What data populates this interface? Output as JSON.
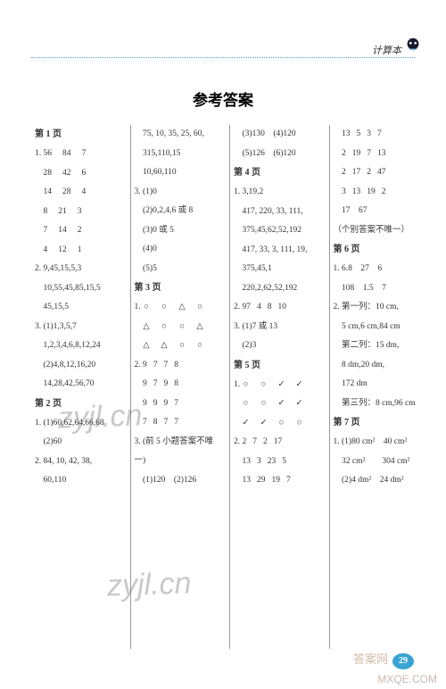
{
  "header": {
    "label": "计算本"
  },
  "title": "参考答案",
  "watermark": "zyjl.cn",
  "footer_page": "29",
  "bottom_wm1": "MXQE.COM",
  "bottom_wm2": "答案网",
  "columns": [
    [
      {
        "cls": "page-hd",
        "t": "第 1 页"
      },
      {
        "cls": "multi",
        "t": [
          "1. 56",
          "84",
          "7"
        ]
      },
      {
        "cls": "multi",
        "t": [
          "　28",
          "42",
          "6"
        ]
      },
      {
        "cls": "multi",
        "t": [
          "　14",
          "28",
          "4"
        ]
      },
      {
        "cls": "multi",
        "t": [
          "　8",
          "21",
          "3"
        ]
      },
      {
        "cls": "multi",
        "t": [
          "　7",
          "14",
          "2"
        ]
      },
      {
        "cls": "multi",
        "t": [
          "　4",
          "12",
          "1"
        ]
      },
      {
        "t": "2. 9,45,15,5,3"
      },
      {
        "t": "　10,55,45,85,15,5"
      },
      {
        "t": "　45,15,5"
      },
      {
        "t": "3. (1)1,3,5,7"
      },
      {
        "t": "　1,2,3,4,6,8,12,24"
      },
      {
        "t": "　(2)4,8,12,16,20"
      },
      {
        "t": "　14,28,42,56,70"
      },
      {
        "cls": "page-hd",
        "t": "第 2 页"
      },
      {
        "t": "1. (1)60,62,64,66,68"
      },
      {
        "t": "　(2)60"
      },
      {
        "t": "2.  84,  10,  42,  38,"
      },
      {
        "t": "　60,110"
      }
    ],
    [
      {
        "t": "　75, 10, 35, 25, 60,"
      },
      {
        "t": "　315,110,15"
      },
      {
        "t": "　10,60,110"
      },
      {
        "t": "3. (1)0"
      },
      {
        "t": "　(2)0,2,4,6 或 8"
      },
      {
        "t": "　(3)0 或 5"
      },
      {
        "t": "　(4)0"
      },
      {
        "t": "　(5)5"
      },
      {
        "cls": "page-hd",
        "t": "第 3 页"
      },
      {
        "cls": "shapes",
        "t": [
          "○",
          "○",
          "△",
          "○"
        ]
      },
      {
        "cls": "shapes",
        "t": [
          "△",
          "○",
          "○",
          "△"
        ]
      },
      {
        "cls": "shapes",
        "t": [
          "△",
          "△",
          "○",
          "○"
        ]
      },
      {
        "cls": "multi3",
        "t": [
          "2. 9",
          "7",
          "7",
          "8"
        ]
      },
      {
        "cls": "multi3",
        "t": [
          "　9",
          "7",
          "9",
          "8"
        ]
      },
      {
        "cls": "multi3",
        "t": [
          "　9",
          "9",
          "9",
          "7"
        ]
      },
      {
        "cls": "multi3",
        "t": [
          "　7",
          "8",
          "7",
          "7"
        ]
      },
      {
        "t": "3. (前 5 小题答案不唯"
      },
      {
        "t": "一)"
      },
      {
        "t": "　(1)120　(2)126"
      }
    ],
    [
      {
        "t": "　(3)130　(4)120"
      },
      {
        "t": "　(5)126　(6)120"
      },
      {
        "cls": "page-hd",
        "t": "第 4 页"
      },
      {
        "t": "1. 3,19,2"
      },
      {
        "t": "　417, 220, 33, 111,"
      },
      {
        "t": "　375,45,62,52,192"
      },
      {
        "t": "　417, 33, 3, 111, 19,"
      },
      {
        "t": "　375,45,1"
      },
      {
        "t": "　220,2,62,52,192"
      },
      {
        "cls": "multi3",
        "t": [
          "2. 97",
          "4",
          "8",
          "10"
        ]
      },
      {
        "t": "3. (1)7 或 13"
      },
      {
        "t": "　(2)3"
      },
      {
        "cls": "page-hd",
        "t": "第 5 页"
      },
      {
        "cls": "shapes",
        "t": [
          "○",
          "○",
          "✓",
          "✓"
        ]
      },
      {
        "cls": "shapes",
        "t": [
          "○",
          "○",
          "✓",
          "✓"
        ]
      },
      {
        "cls": "shapes",
        "t": [
          "✓",
          "✓",
          "○",
          "○"
        ]
      },
      {
        "cls": "multi3",
        "t": [
          "2. 2",
          "7",
          "2",
          "17"
        ]
      },
      {
        "cls": "multi3",
        "t": [
          "　13",
          "3",
          "23",
          "5"
        ]
      },
      {
        "cls": "multi3",
        "t": [
          "　13",
          "29",
          "19",
          "7"
        ]
      }
    ],
    [
      {
        "cls": "multi3",
        "t": [
          "　13",
          "5",
          "3",
          "7"
        ]
      },
      {
        "cls": "multi3",
        "t": [
          "　2",
          "19",
          "7",
          "13"
        ]
      },
      {
        "cls": "multi3",
        "t": [
          "　2",
          "17",
          "2",
          "47"
        ]
      },
      {
        "cls": "multi3",
        "t": [
          "　3",
          "13",
          "19",
          "2"
        ]
      },
      {
        "t": "　17　67"
      },
      {
        "t": "（个别答案不唯一）"
      },
      {
        "cls": "page-hd",
        "t": "第 6 页"
      },
      {
        "t": "1. 6.8　27　6"
      },
      {
        "t": "　108　1.5　7"
      },
      {
        "t": "2. 第一列：10 cm,"
      },
      {
        "t": "　5 cm,6 cm,84 cm"
      },
      {
        "t": "　第二列：15 dm,"
      },
      {
        "t": "　8 dm,20 dm,"
      },
      {
        "t": "　172 dm"
      },
      {
        "t": "　第三列：8 cm,96 cm"
      },
      {
        "cls": "page-hd",
        "t": "第 7 页"
      },
      {
        "t": "1. (1)80 cm²　40 cm²"
      },
      {
        "t": "　32 cm²　　304 cm²"
      },
      {
        "t": "　(2)4 dm²　24 dm²"
      }
    ]
  ]
}
